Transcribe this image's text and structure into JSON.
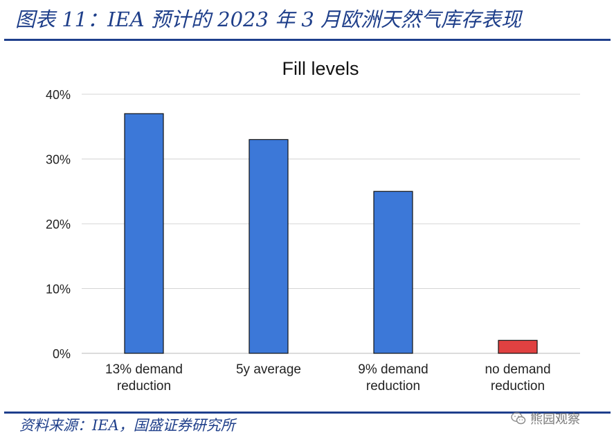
{
  "header": {
    "title": "图表 11：IEA 预计的 2023 年 3 月欧洲天然气库存表现"
  },
  "footer": {
    "source": "资料来源：IEA，国盛证券研究所",
    "watermark": "熊园观察",
    "watermark_icon": "wechat-icon"
  },
  "chart_data": {
    "type": "bar",
    "title": "Fill levels",
    "xlabel": "",
    "ylabel": "",
    "categories": [
      [
        "13% demand",
        "reduction"
      ],
      [
        "5y average"
      ],
      [
        "9% demand",
        "reduction"
      ],
      [
        "no demand",
        "reduction"
      ]
    ],
    "values": [
      0.37,
      0.33,
      0.25,
      0.02
    ],
    "bar_colors": [
      "#3c78d8",
      "#3c78d8",
      "#3c78d8",
      "#e04141"
    ],
    "ylim": [
      0,
      0.4
    ],
    "yticks": [
      0,
      0.1,
      0.2,
      0.3,
      0.4
    ],
    "ytick_labels": [
      "0%",
      "10%",
      "20%",
      "30%",
      "40%"
    ],
    "grid": true,
    "legend": "none"
  }
}
